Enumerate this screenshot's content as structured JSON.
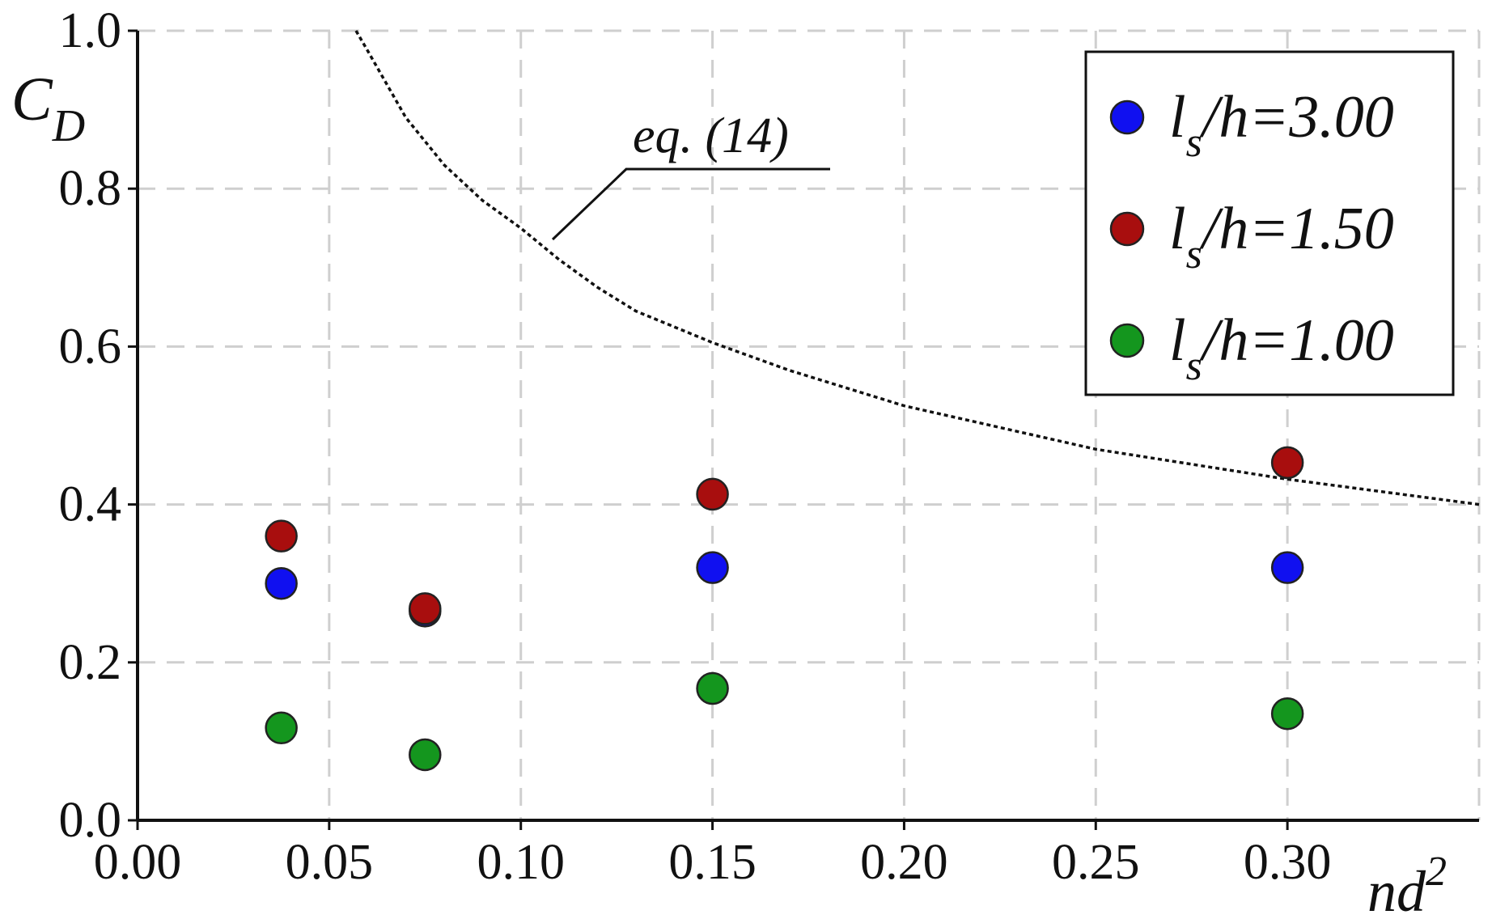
{
  "chart_data": {
    "type": "scatter",
    "xlabel": "nd",
    "xlabel_sup": "2",
    "ylabel": "C",
    "ylabel_sub": "D",
    "xlim": [
      0.0,
      0.35
    ],
    "ylim": [
      0.0,
      1.0
    ],
    "x_ticks": [
      0.0,
      0.05,
      0.1,
      0.15,
      0.2,
      0.25,
      0.3
    ],
    "x_tick_labels": [
      "0.00",
      "0.05",
      "0.10",
      "0.15",
      "0.20",
      "0.25",
      "0.30"
    ],
    "y_ticks": [
      0.0,
      0.2,
      0.4,
      0.6,
      0.8,
      1.0
    ],
    "y_tick_labels": [
      "0.0",
      "0.2",
      "0.4",
      "0.6",
      "0.8",
      "1.0"
    ],
    "grid": true,
    "legend_position": "top-right",
    "series": [
      {
        "name": "3.00",
        "legend_parts": {
          "l": "l",
          "sub": "s",
          "rest": "/h=3.00"
        },
        "color": "#1010f0",
        "x": [
          0.0375,
          0.075,
          0.15,
          0.3
        ],
        "y": [
          0.3,
          0.265,
          0.32,
          0.32
        ]
      },
      {
        "name": "1.50",
        "legend_parts": {
          "l": "l",
          "sub": "s",
          "rest": "/h=1.50"
        },
        "color": "#a80e0e",
        "x": [
          0.0375,
          0.075,
          0.15,
          0.3
        ],
        "y": [
          0.36,
          0.268,
          0.413,
          0.453
        ]
      },
      {
        "name": "1.00",
        "legend_parts": {
          "l": "l",
          "sub": "s",
          "rest": "/h=1.00"
        },
        "color": "#14961e",
        "x": [
          0.0375,
          0.075,
          0.15,
          0.3
        ],
        "y": [
          0.117,
          0.083,
          0.167,
          0.135
        ]
      }
    ],
    "reference_curve": {
      "label": "eq. (14)",
      "style": "dotted",
      "x": [
        0.057,
        0.06,
        0.07,
        0.08,
        0.09,
        0.1,
        0.11,
        0.12,
        0.13,
        0.14,
        0.15,
        0.17,
        0.2,
        0.25,
        0.3,
        0.35
      ],
      "y": [
        1.0,
        0.975,
        0.89,
        0.83,
        0.785,
        0.75,
        0.71,
        0.675,
        0.645,
        0.625,
        0.605,
        0.57,
        0.525,
        0.47,
        0.432,
        0.4
      ]
    }
  }
}
